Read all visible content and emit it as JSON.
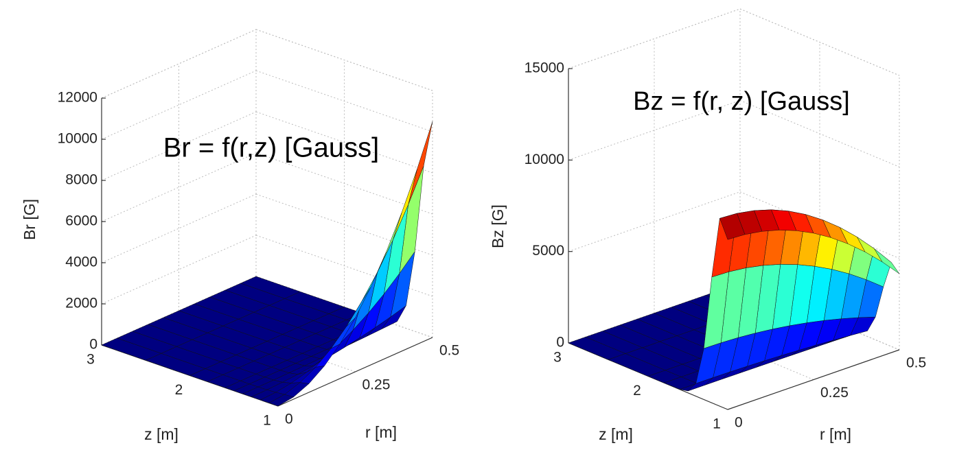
{
  "chart_data": [
    {
      "type": "surface",
      "title": "Br = f(r,z) [Gauss]",
      "xlabel": "r [m]",
      "ylabel": "z [m]",
      "zlabel": "Br [G]",
      "x": [
        0,
        0.05,
        0.1,
        0.15,
        0.2,
        0.25,
        0.3,
        0.35,
        0.4,
        0.45,
        0.5
      ],
      "y": [
        1,
        1.1,
        1.2,
        1.3,
        1.4,
        1.5,
        1.6,
        1.8,
        2,
        2.5,
        3
      ],
      "z": [
        [
          0,
          105,
          420,
          945,
          1680,
          2625,
          3780,
          5145,
          6720,
          8505,
          10500
        ],
        [
          0,
          82,
          328,
          737,
          1310,
          2048,
          2948,
          4013,
          5242,
          6634,
          8190
        ],
        [
          0,
          39,
          155,
          350,
          622,
          971,
          1399,
          1904,
          2486,
          3147,
          3885
        ],
        [
          0,
          11,
          44,
          99,
          176,
          276,
          397,
          540,
          706,
          893,
          1103
        ],
        [
          0,
          2,
          8,
          17,
          30,
          47,
          68,
          93,
          121,
          153,
          189
        ],
        [
          0,
          0,
          1,
          2,
          3,
          5,
          8,
          10,
          13,
          17,
          21
        ],
        [
          0,
          0,
          0,
          0,
          0,
          0,
          0,
          0,
          0,
          0,
          0
        ],
        [
          0,
          0,
          0,
          0,
          0,
          0,
          0,
          0,
          0,
          0,
          0
        ],
        [
          0,
          0,
          0,
          0,
          0,
          0,
          0,
          0,
          0,
          0,
          0
        ],
        [
          0,
          0,
          0,
          0,
          0,
          0,
          0,
          0,
          0,
          0,
          0
        ],
        [
          0,
          0,
          0,
          0,
          0,
          0,
          0,
          0,
          0,
          0,
          0
        ]
      ],
      "xlim": [
        0,
        0.5
      ],
      "ylim": [
        1,
        3
      ],
      "zlim": [
        0,
        12000
      ],
      "xticks": [
        0,
        0.25,
        0.5
      ],
      "yticks": [
        1,
        2,
        3
      ],
      "zticks": [
        0,
        2000,
        4000,
        6000,
        8000,
        10000,
        12000
      ],
      "colormap": "jet",
      "grid": true
    },
    {
      "type": "surface",
      "title": "Bz = f(r, z) [Gauss]",
      "xlabel": "r [m]",
      "ylabel": "z [m]",
      "zlabel": "Bz [G]",
      "x": [
        0,
        0.05,
        0.1,
        0.15,
        0.2,
        0.25,
        0.3,
        0.35,
        0.4,
        0.45,
        0.5
      ],
      "y": [
        1,
        1.1,
        1.2,
        1.3,
        1.4,
        1.5,
        1.6,
        1.8,
        2,
        2.5,
        3
      ],
      "z": [
        [
          9293,
          9241,
          9087,
          8831,
          8471,
          8009,
          7445,
          6777,
          6007,
          5135,
          4160
        ],
        [
          10269,
          10212,
          10042,
          9758,
          9361,
          8851,
          8227,
          7490,
          6639,
          5674,
          4597
        ],
        [
          6878,
          6840,
          6726,
          6536,
          6270,
          5928,
          5510,
          5016,
          4446,
          3800,
          3079
        ],
        [
          2793,
          2778,
          2731,
          2654,
          2546,
          2407,
          2238,
          2037,
          1806,
          1543,
          1250
        ],
        [
          693,
          689,
          678,
          659,
          632,
          597,
          555,
          505,
          448,
          383,
          310
        ],
        [
          105,
          104,
          103,
          100,
          96,
          91,
          84,
          77,
          68,
          58,
          47
        ],
        [
          11,
          10,
          10,
          10,
          10,
          9,
          8,
          8,
          7,
          6,
          5
        ],
        [
          0,
          0,
          0,
          0,
          0,
          0,
          0,
          0,
          0,
          0,
          0
        ],
        [
          0,
          0,
          0,
          0,
          0,
          0,
          0,
          0,
          0,
          0,
          0
        ],
        [
          0,
          0,
          0,
          0,
          0,
          0,
          0,
          0,
          0,
          0,
          0
        ],
        [
          0,
          0,
          0,
          0,
          0,
          0,
          0,
          0,
          0,
          0,
          0
        ]
      ],
      "xlim": [
        0,
        0.5
      ],
      "ylim": [
        1,
        3
      ],
      "zlim": [
        0,
        15000
      ],
      "xticks": [
        0,
        0.25,
        0.5
      ],
      "yticks": [
        1,
        2,
        3
      ],
      "zticks": [
        0,
        5000,
        10000,
        15000
      ],
      "colormap": "jet",
      "grid": true
    }
  ]
}
